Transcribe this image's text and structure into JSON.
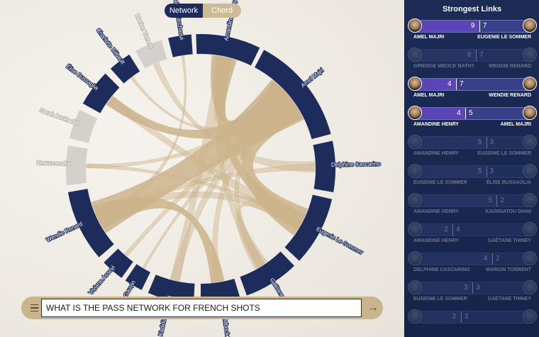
{
  "view_toggle": {
    "network_label": "Network",
    "chord_label": "Chord",
    "active": "Chord"
  },
  "query": {
    "text": "WHAT IS THE PASS NETWORK FOR FRENCH SHOTS"
  },
  "chord": {
    "colors": {
      "segment": "#1d2c5a",
      "segment_dim": "#d4d1cc",
      "ribbon": "#cbb38b"
    },
    "players": [
      {
        "name": "Amandine Henry",
        "active": true
      },
      {
        "name": "Amel Majri",
        "active": true
      },
      {
        "name": "Delphine Cascarino",
        "active": true
      },
      {
        "name": "Eugenie Le Sommer",
        "active": true
      },
      {
        "name": "Gaëtane Thiney",
        "active": true
      },
      {
        "name": "Griedge Mbock Bathy",
        "active": true
      },
      {
        "name": "Kadidiatou Diani",
        "active": true
      },
      {
        "name": "Valérie Gauvin",
        "active": true
      },
      {
        "name": "Viviane Asseyi",
        "active": true
      },
      {
        "name": "Wendie Renard",
        "active": true
      },
      {
        "name": "Unsuccessful",
        "active": false
      },
      {
        "name": "Sarah Bouhaddi",
        "active": false
      },
      {
        "name": "Élise Bussaglia",
        "active": true
      },
      {
        "name": "Charlotte Bilbault",
        "active": true
      },
      {
        "name": "Marion Torrent",
        "active": false
      },
      {
        "name": "Sakina Karchaoui",
        "active": true
      }
    ]
  },
  "panel": {
    "title": "Strongest Links",
    "colors": {
      "bar": "#3a3f8a",
      "fill": "#5b45b6"
    },
    "links": [
      {
        "left_name": "AMEL MAJRI",
        "right_name": "EUGENIE LE SOMMER",
        "left_value": "9",
        "right_value": "7",
        "split": 0.56,
        "dim": false
      },
      {
        "left_name": "GRIEDGE MBOCK BATHY",
        "right_name": "WENDIE RENARD",
        "left_value": "8",
        "right_value": "7",
        "split": 0.53,
        "dim": true
      },
      {
        "left_name": "AMEL MAJRI",
        "right_name": "WENDIE RENARD",
        "left_value": "4",
        "right_value": "7",
        "split": 0.36,
        "dim": false
      },
      {
        "left_name": "AMANDINE HENRY",
        "right_name": "AMEL MAJRI",
        "left_value": "4",
        "right_value": "5",
        "split": 0.44,
        "dim": false
      },
      {
        "left_name": "AMANDINE HENRY",
        "right_name": "EUGENIE LE SOMMER",
        "left_value": "5",
        "right_value": "3",
        "split": 0.62,
        "dim": true
      },
      {
        "left_name": "EUGENIE LE SOMMER",
        "right_name": "ÉLISE BUSSAGLIA",
        "left_value": "5",
        "right_value": "3",
        "split": 0.62,
        "dim": true
      },
      {
        "left_name": "AMANDINE HENRY",
        "right_name": "KADIDIATOU DIANI",
        "left_value": "5",
        "right_value": "2",
        "split": 0.71,
        "dim": true
      },
      {
        "left_name": "AMANDINE HENRY",
        "right_name": "GAËTANE THINEY",
        "left_value": "2",
        "right_value": "4",
        "split": 0.33,
        "dim": true
      },
      {
        "left_name": "DELPHINE CASCARINO",
        "right_name": "MARION TORRENT",
        "left_value": "4",
        "right_value": "2",
        "split": 0.67,
        "dim": true
      },
      {
        "left_name": "EUGENIE LE SOMMER",
        "right_name": "GAËTANE THINEY",
        "left_value": "3",
        "right_value": "3",
        "split": 0.5,
        "dim": true
      },
      {
        "left_name": "",
        "right_name": "",
        "left_value": "2",
        "right_value": "3",
        "split": 0.4,
        "dim": true
      }
    ]
  }
}
